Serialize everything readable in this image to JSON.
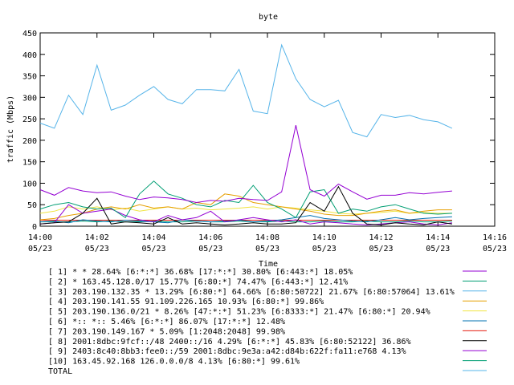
{
  "chart_data": {
    "type": "line",
    "title": "byte",
    "xlabel": "Time",
    "ylabel": "traffic (Mbps)",
    "ylim": [
      0,
      450
    ],
    "yticks": [
      0,
      50,
      100,
      150,
      200,
      250,
      300,
      350,
      400,
      450
    ],
    "xlim_minutes": [
      0,
      16
    ],
    "xticks": [
      {
        "time": "14:00",
        "date": "05/23"
      },
      {
        "time": "14:02",
        "date": "05/23"
      },
      {
        "time": "14:04",
        "date": "05/23"
      },
      {
        "time": "14:06",
        "date": "05/23"
      },
      {
        "time": "14:08",
        "date": "05/23"
      },
      {
        "time": "14:10",
        "date": "05/23"
      },
      {
        "time": "14:12",
        "date": "05/23"
      },
      {
        "time": "14:14",
        "date": "05/23"
      },
      {
        "time": "14:16",
        "date": "05/23"
      }
    ],
    "grid": false,
    "legend_position": "bottom",
    "x_minutes": [
      0,
      0.5,
      1,
      1.5,
      2,
      2.5,
      3,
      3.5,
      4,
      4.5,
      5,
      5.5,
      6,
      6.5,
      7,
      7.5,
      8,
      8.5,
      9,
      9.5,
      10,
      10.5,
      11,
      11.5,
      12,
      12.5,
      13,
      13.5,
      14,
      14.5
    ],
    "series": [
      {
        "name": "[ 1] * * 28.64%  [6:*:*] 36.68% [17:*:*] 30.80% [6:443:*] 18.05%",
        "color": "#9400d3",
        "values": [
          85,
          72,
          90,
          82,
          78,
          80,
          70,
          62,
          68,
          66,
          62,
          55,
          60,
          58,
          65,
          62,
          60,
          80,
          235,
          85,
          70,
          98,
          80,
          63,
          72,
          72,
          78,
          75,
          79,
          82
        ]
      },
      {
        "name": "[ 2] * 163.45.128.0/17 15.77%  [6:80:*] 74.47% [6:443:*] 12.41%",
        "color": "#009e73",
        "values": [
          40,
          50,
          55,
          45,
          40,
          42,
          20,
          75,
          105,
          75,
          65,
          50,
          45,
          60,
          55,
          95,
          55,
          40,
          20,
          80,
          85,
          30,
          40,
          35,
          45,
          50,
          40,
          30,
          28,
          30
        ]
      },
      {
        "name": "[ 3] 203.190.132.35 * 13.29%  [6:80:*] 64.66% [6:80:50722] 21.67% [6:80:57064] 13.61%",
        "color": "#56b4e9",
        "values": [
          240,
          228,
          305,
          260,
          375,
          270,
          282,
          305,
          325,
          295,
          285,
          318,
          318,
          315,
          365,
          268,
          262,
          422,
          343,
          295,
          278,
          293,
          218,
          208,
          260,
          253,
          258,
          248,
          243,
          228
        ]
      },
      {
        "name": "[ 4] 203.190.141.55 91.109.226.165 10.93%  [6:80:*] 99.86%",
        "color": "#e69f00",
        "values": [
          15,
          18,
          25,
          30,
          40,
          45,
          40,
          50,
          42,
          45,
          40,
          55,
          50,
          75,
          70,
          55,
          50,
          45,
          40,
          35,
          28,
          25,
          25,
          30,
          35,
          38,
          30,
          35,
          38,
          38
        ]
      },
      {
        "name": "[ 5] 203.190.136.0/21 * 8.26%  [47:*:*] 51.23% [6:8333:*] 21.47% [6:80:*] 20.94%",
        "color": "#f0e442",
        "values": [
          30,
          35,
          45,
          40,
          45,
          38,
          42,
          35,
          40,
          45,
          40,
          42,
          38,
          40,
          42,
          45,
          40,
          45,
          42,
          38,
          35,
          30,
          28,
          30,
          32,
          35,
          30,
          32,
          30,
          30
        ]
      },
      {
        "name": "[ 6] *:: *:: 5.46%  [6:*:*] 86.07% [17:*:*] 12.48%",
        "color": "#0072b2",
        "values": [
          10,
          12,
          8,
          15,
          12,
          10,
          14,
          12,
          10,
          8,
          15,
          12,
          10,
          12,
          14,
          10,
          12,
          15,
          20,
          25,
          18,
          15,
          12,
          10,
          15,
          20,
          15,
          18,
          20,
          22
        ]
      },
      {
        "name": "[ 7] 203.190.149.167 * 5.09%  [1:2048:2048] 99.98%",
        "color": "#e51e10",
        "values": [
          14,
          14,
          14,
          14,
          14,
          14,
          14,
          14,
          14,
          14,
          14,
          14,
          14,
          14,
          14,
          14,
          14,
          14,
          14,
          14,
          14,
          14,
          14,
          14,
          14,
          14,
          14,
          14,
          14,
          14
        ]
      },
      {
        "name": "[ 8] 2001:8dbc:9fcf::/48 2400::/16 4.29%  [6:*:*] 45.83% [6:80:52122] 36.86%",
        "color": "#000000",
        "values": [
          5,
          8,
          10,
          30,
          65,
          5,
          10,
          8,
          5,
          20,
          5,
          8,
          5,
          3,
          5,
          8,
          5,
          5,
          8,
          55,
          35,
          92,
          30,
          5,
          3,
          8,
          5,
          3,
          10,
          5
        ]
      },
      {
        "name": "[ 9] 2403:8c40:8bb3:fee0::/59 2001:8dbc:9e3a:a42:d84b:622f:fa11:e768 4.13%",
        "color": "#9400d3",
        "values": [
          5,
          8,
          50,
          30,
          35,
          40,
          25,
          15,
          10,
          25,
          15,
          20,
          35,
          10,
          15,
          20,
          15,
          10,
          15,
          5,
          10,
          8,
          5,
          3,
          5,
          8,
          10,
          5,
          3,
          8
        ]
      },
      {
        "name": "[10] 163.45.92.168 126.0.0.0/8 4.13%  [6:80:*] 99.61%",
        "color": "#009e73",
        "values": [
          10,
          10,
          10,
          12,
          10,
          12,
          10,
          10,
          12,
          10,
          10,
          12,
          10,
          10,
          12,
          10,
          10,
          12,
          10,
          10,
          12,
          10,
          10,
          12,
          10,
          10,
          12,
          10,
          10,
          12
        ]
      },
      {
        "name": "TOTAL",
        "color": "#56b4e9",
        "values": []
      }
    ]
  }
}
